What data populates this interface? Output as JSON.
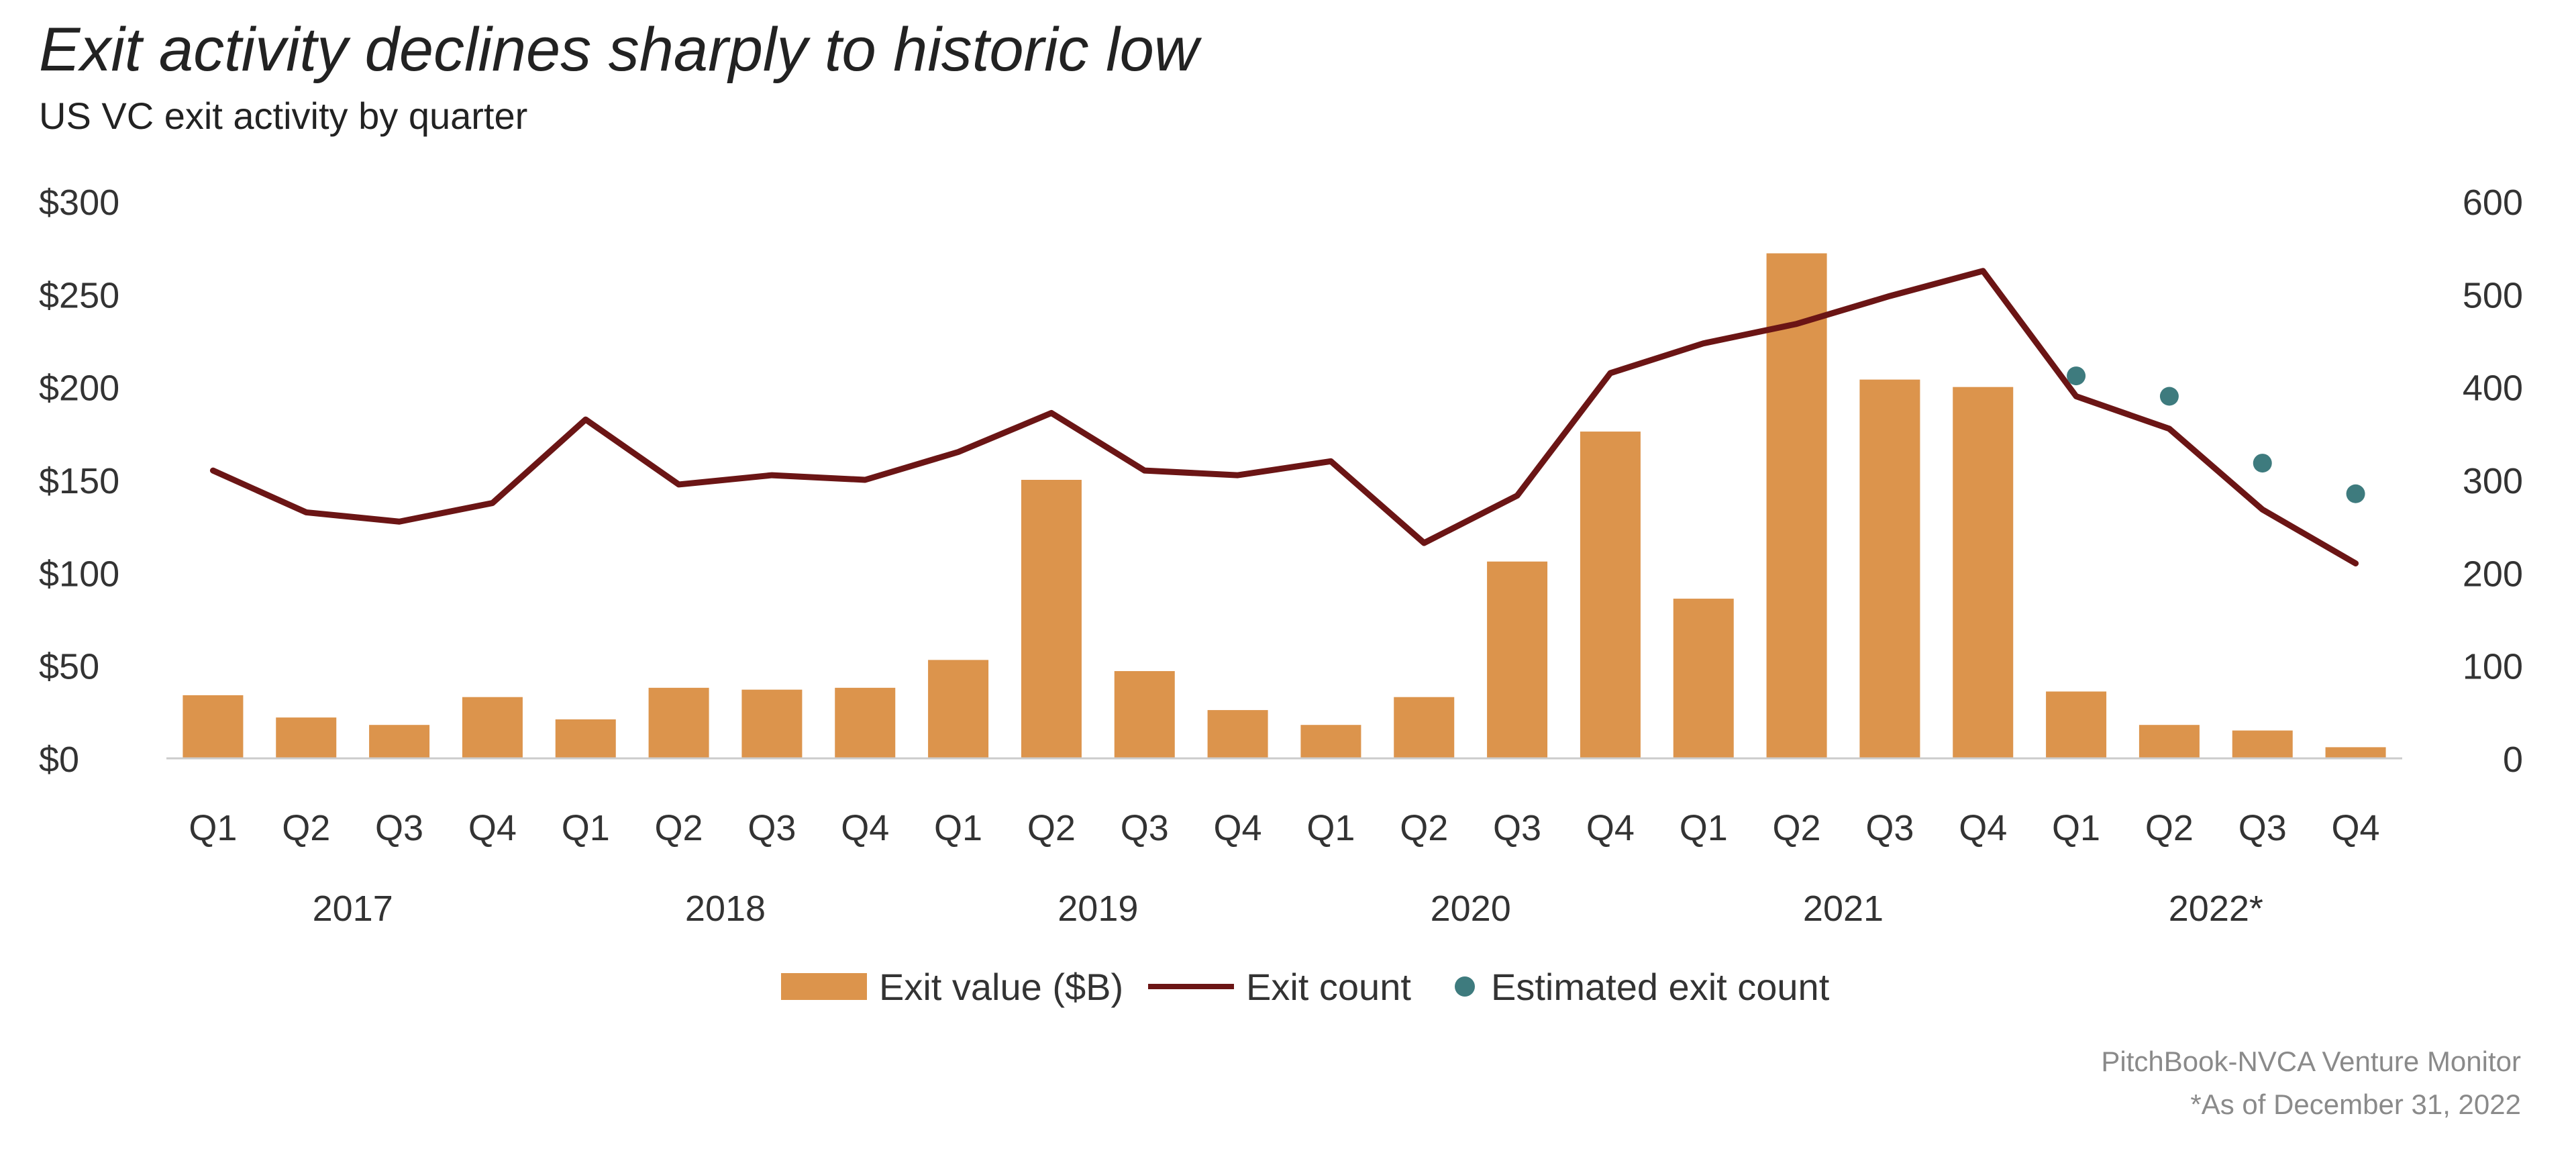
{
  "title": "Exit activity declines sharply to historic low",
  "subtitle": "US VC exit activity by quarter",
  "source": "PitchBook-NVCA Venture Monitor",
  "footnote": "*As of December 31, 2022",
  "colors": {
    "bar": "#dc944c",
    "line": "#6b1515",
    "dot": "#3e7b7e",
    "axis": "#cccccc",
    "text": "#333333"
  },
  "chart_data": {
    "type": "bar",
    "title": "Exit activity declines sharply to historic low",
    "subtitle": "US VC exit activity by quarter",
    "categories": [
      "Q1",
      "Q2",
      "Q3",
      "Q4",
      "Q1",
      "Q2",
      "Q3",
      "Q4",
      "Q1",
      "Q2",
      "Q3",
      "Q4",
      "Q1",
      "Q2",
      "Q3",
      "Q4",
      "Q1",
      "Q2",
      "Q3",
      "Q4",
      "Q1",
      "Q2",
      "Q3",
      "Q4"
    ],
    "years": [
      {
        "label": "2017",
        "start": 0,
        "end": 3
      },
      {
        "label": "2018",
        "start": 4,
        "end": 7
      },
      {
        "label": "2019",
        "start": 8,
        "end": 11
      },
      {
        "label": "2020",
        "start": 12,
        "end": 15
      },
      {
        "label": "2021",
        "start": 16,
        "end": 19
      },
      {
        "label": "2022*",
        "start": 20,
        "end": 23
      }
    ],
    "series": [
      {
        "name": "Exit value ($B)",
        "type": "bar",
        "axis": "left",
        "values": [
          34,
          22,
          18,
          33,
          21,
          38,
          37,
          38,
          53,
          150,
          47,
          26,
          18,
          33,
          106,
          176,
          86,
          272,
          204,
          200,
          36,
          18,
          15,
          6
        ]
      },
      {
        "name": "Exit count",
        "type": "line",
        "axis": "right",
        "values": [
          310,
          265,
          255,
          275,
          365,
          295,
          305,
          300,
          330,
          372,
          310,
          305,
          320,
          232,
          283,
          415,
          447,
          468,
          498,
          525,
          390,
          355,
          268,
          210
        ]
      },
      {
        "name": "Estimated exit count",
        "type": "scatter",
        "axis": "right",
        "x_start": 20,
        "values": [
          412,
          390,
          318,
          285
        ]
      }
    ],
    "y_left": {
      "min": 0,
      "max": 300,
      "ticks": [
        0,
        50,
        100,
        150,
        200,
        250,
        300
      ],
      "tick_labels": [
        "$0",
        "$50",
        "$100",
        "$150",
        "$200",
        "$250",
        "$300"
      ]
    },
    "y_right": {
      "min": 0,
      "max": 600,
      "ticks": [
        0,
        100,
        200,
        300,
        400,
        500,
        600
      ],
      "tick_labels": [
        "0",
        "100",
        "200",
        "300",
        "400",
        "500",
        "600"
      ]
    },
    "legend": {
      "position": "bottom-center",
      "entries": [
        "Exit value ($B)",
        "Exit count",
        "Estimated exit count"
      ]
    },
    "grid": false
  }
}
